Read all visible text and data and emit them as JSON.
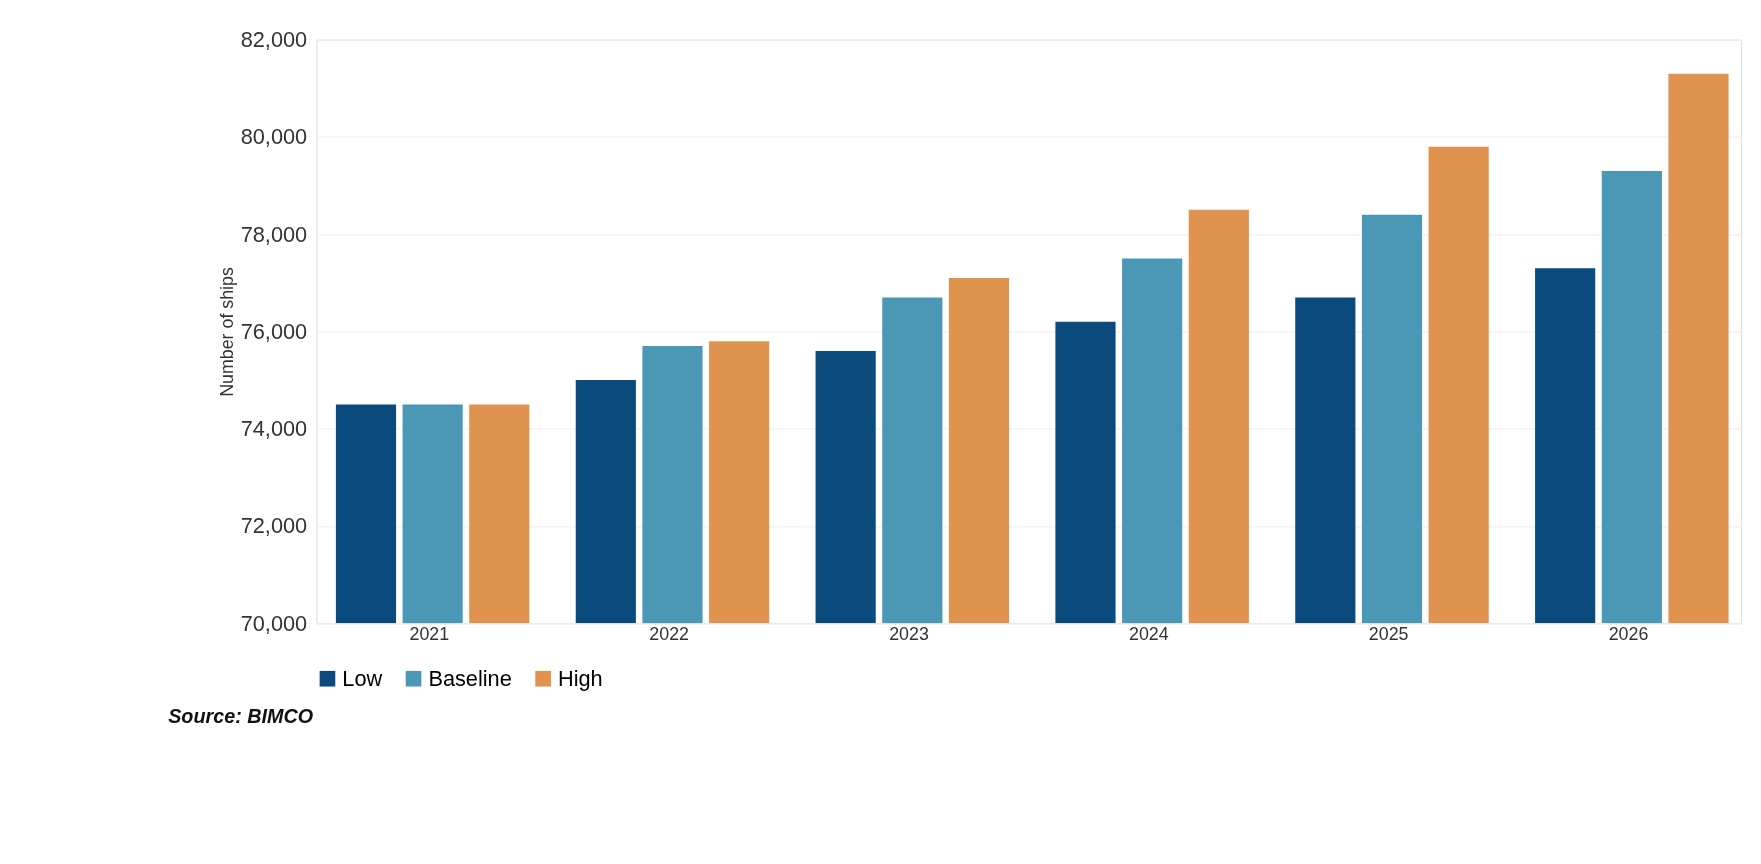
{
  "chart_data": {
    "type": "bar",
    "ylabel": "Number of ships",
    "categories": [
      "2021",
      "2022",
      "2023",
      "2024",
      "2025",
      "2026"
    ],
    "series": [
      {
        "name": "Low",
        "color": "#0b4a7d",
        "values": [
          74500,
          75000,
          75600,
          76200,
          76700,
          77300
        ]
      },
      {
        "name": "Baseline",
        "color": "#4a98b5",
        "values": [
          74500,
          75700,
          76700,
          77500,
          78400,
          79300
        ]
      },
      {
        "name": "High",
        "color": "#e0924f",
        "values": [
          74500,
          75800,
          77100,
          78500,
          79800,
          81300
        ]
      }
    ],
    "ylim": [
      70000,
      82000
    ],
    "yticks": [
      {
        "value": 70000,
        "label": "70,000"
      },
      {
        "value": 72000,
        "label": "72,000"
      },
      {
        "value": 74000,
        "label": "74,000"
      },
      {
        "value": 76000,
        "label": "76,000"
      },
      {
        "value": 78000,
        "label": "78,000"
      },
      {
        "value": 80000,
        "label": "80,000"
      },
      {
        "value": 82000,
        "label": "82,000"
      }
    ],
    "grid": "y",
    "legend": "bottom left",
    "annotations": [
      "Source: BIMCO"
    ]
  }
}
